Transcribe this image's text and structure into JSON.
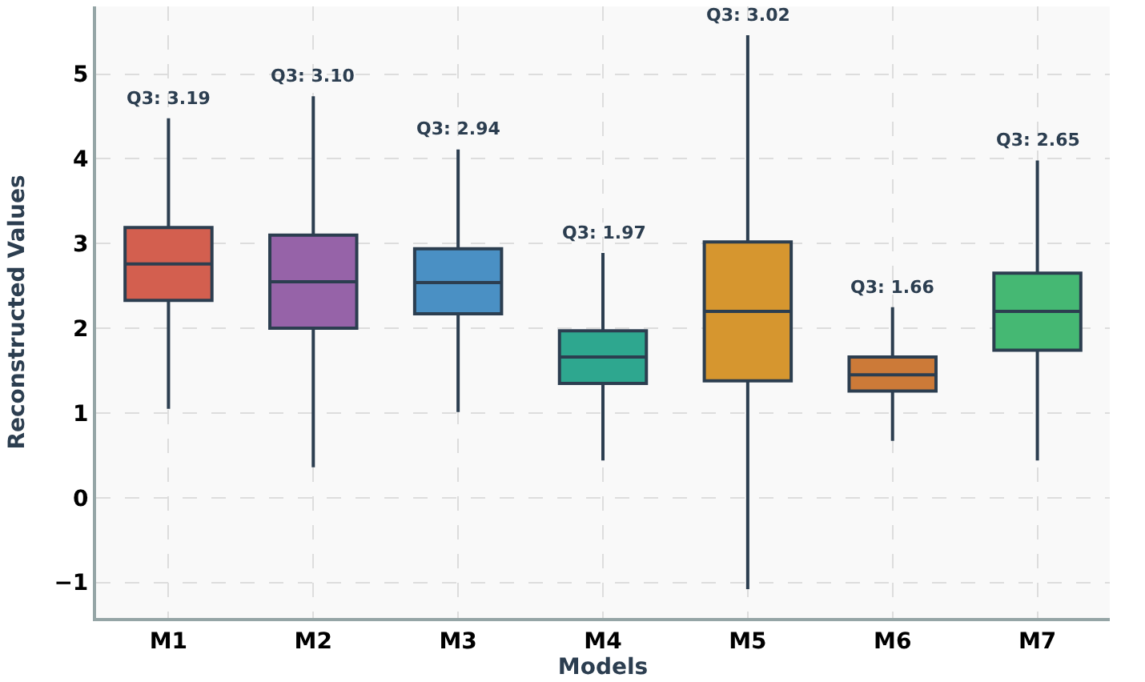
{
  "chart_data": {
    "type": "box",
    "xlabel": "Models",
    "ylabel": "Reconstructed Values",
    "categories": [
      "M1",
      "M2",
      "M3",
      "M4",
      "M5",
      "M6",
      "M7"
    ],
    "colors": [
      "#d35f4f",
      "#9663a8",
      "#4a90c4",
      "#2ea78f",
      "#d6962f",
      "#cc7a38",
      "#45b873"
    ],
    "boxes": [
      {
        "low": 1.05,
        "q1": 2.33,
        "median": 2.76,
        "q3": 3.19,
        "high": 4.48
      },
      {
        "low": 0.36,
        "q1": 2.0,
        "median": 2.55,
        "q3": 3.1,
        "high": 4.74
      },
      {
        "low": 1.01,
        "q1": 2.17,
        "median": 2.54,
        "q3": 2.94,
        "high": 4.11
      },
      {
        "low": 0.44,
        "q1": 1.35,
        "median": 1.66,
        "q3": 1.97,
        "high": 2.89
      },
      {
        "low": -1.08,
        "q1": 1.38,
        "median": 2.2,
        "q3": 3.02,
        "high": 5.46
      },
      {
        "low": 0.67,
        "q1": 1.26,
        "median": 1.45,
        "q3": 1.66,
        "high": 2.25
      },
      {
        "low": 0.44,
        "q1": 1.74,
        "median": 2.2,
        "q3": 2.65,
        "high": 3.98
      }
    ],
    "annotations": [
      {
        "text": "Q3: 3.19",
        "x": "M1",
        "y": 4.48
      },
      {
        "text": "Q3: 3.10",
        "x": "M2",
        "y": 4.74
      },
      {
        "text": "Q3: 2.94",
        "x": "M3",
        "y": 4.11
      },
      {
        "text": "Q3: 1.97",
        "x": "M4",
        "y": 2.89
      },
      {
        "text": "Q3: 3.02",
        "x": "M5",
        "y": 5.46
      },
      {
        "text": "Q3: 1.66",
        "x": "M6",
        "y": 2.25
      },
      {
        "text": "Q3: 2.65",
        "x": "M7",
        "y": 3.98
      }
    ],
    "ylim": [
      -1.42,
      5.8
    ],
    "yticks": [
      {
        "value": -1,
        "label": "−1"
      },
      0,
      1,
      2,
      3,
      4,
      5
    ],
    "grid": true
  }
}
